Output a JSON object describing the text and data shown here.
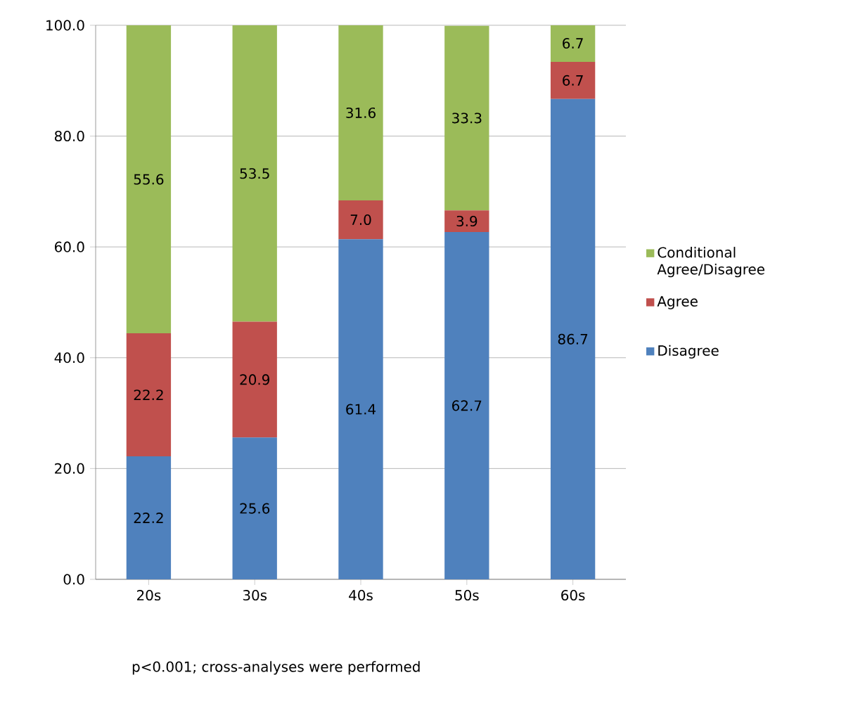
{
  "chart_data": {
    "type": "bar",
    "stacked": true,
    "categories": [
      "20s",
      "30s",
      "40s",
      "50s",
      "60s"
    ],
    "series": [
      {
        "name": "Disagree",
        "color": "#4f81bd",
        "values": [
          22.2,
          25.6,
          61.4,
          62.7,
          86.7
        ],
        "value_labels": [
          "22.2",
          "25.6",
          "61.4",
          "62.7",
          "86.7"
        ]
      },
      {
        "name": "Agree",
        "color": "#c0504d",
        "values": [
          22.2,
          20.9,
          7.0,
          3.9,
          6.7
        ],
        "value_labels": [
          "22.2",
          "20.9",
          "7.0",
          "3.9",
          "6.7"
        ]
      },
      {
        "name": "Conditional Agree/Disagree",
        "color": "#9bbb59",
        "values": [
          55.6,
          53.5,
          31.6,
          33.3,
          6.7
        ],
        "value_labels": [
          "55.6",
          "53.5",
          "31.6",
          "33.3",
          "6.7"
        ]
      }
    ],
    "ylim": [
      0,
      100
    ],
    "yticks": [
      {
        "value": 0,
        "label": "0.0"
      },
      {
        "value": 20,
        "label": "20.0"
      },
      {
        "value": 40,
        "label": "40.0"
      },
      {
        "value": 60,
        "label": "60.0"
      },
      {
        "value": 80,
        "label": "80.0"
      },
      {
        "value": 100,
        "label": "100.0"
      }
    ],
    "grid": "y",
    "legend": "right",
    "annotations": [
      "p<0.001; cross-analyses were performed"
    ]
  }
}
